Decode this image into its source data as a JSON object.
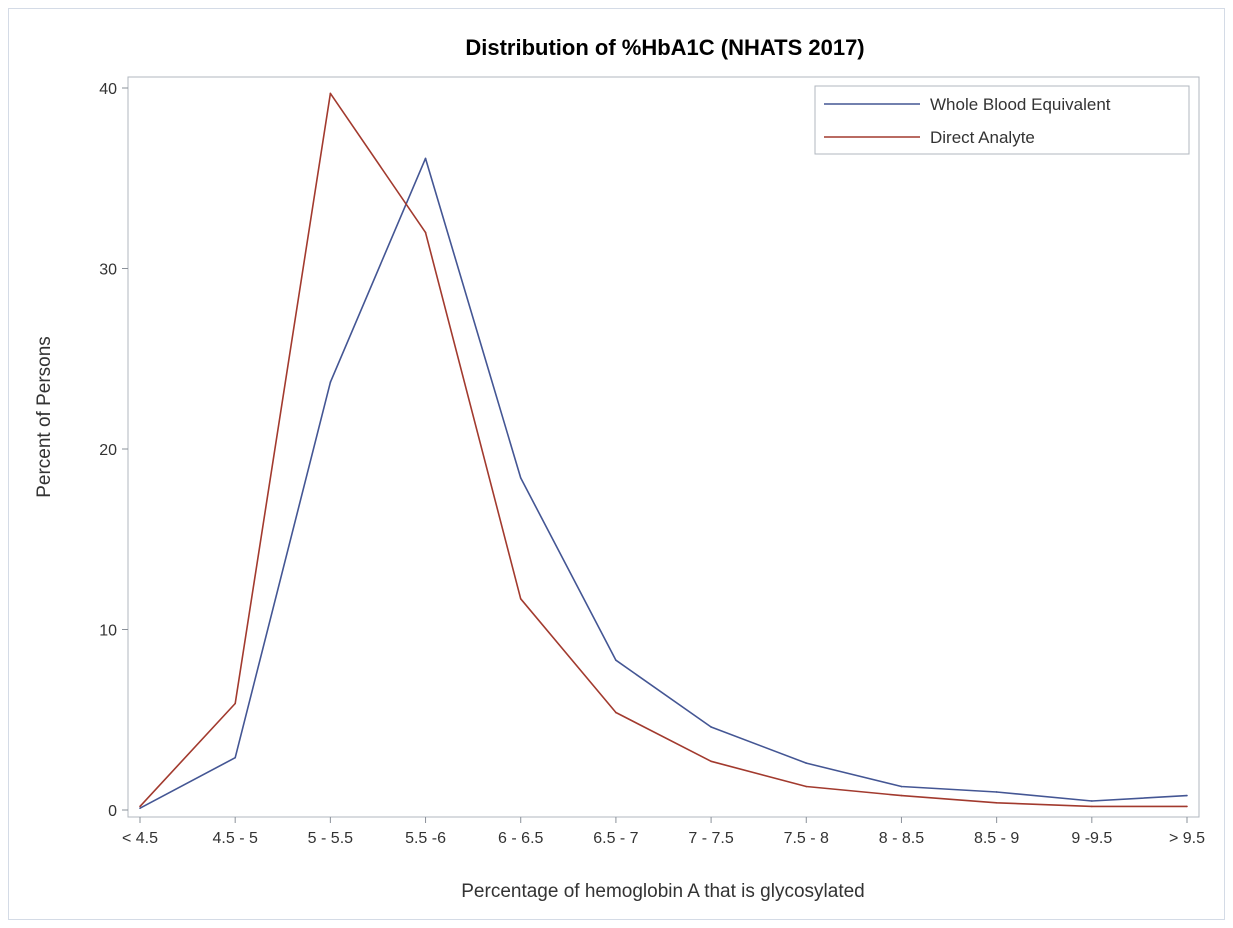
{
  "chart_data": {
    "type": "line",
    "title": "Distribution of %HbA1C (NHATS 2017)",
    "xlabel": "Percentage of hemoglobin A that is glycosylated",
    "ylabel": "Percent of Persons",
    "categories": [
      "< 4.5",
      "4.5 - 5",
      "5 - 5.5",
      "5.5 -6",
      "6 - 6.5",
      "6.5 - 7",
      "7 - 7.5",
      "7.5 - 8",
      "8 - 8.5",
      "8.5 - 9",
      "9 -9.5",
      "> 9.5"
    ],
    "yticks": [
      0,
      10,
      20,
      30,
      40
    ],
    "ylim": [
      0,
      40.5
    ],
    "grid": false,
    "legend_position": "top-right",
    "series": [
      {
        "name": "Whole Blood Equivalent",
        "color": "#445694",
        "values": [
          0.1,
          2.9,
          23.7,
          36.1,
          18.4,
          8.3,
          4.6,
          2.6,
          1.3,
          1.0,
          0.5,
          0.8
        ]
      },
      {
        "name": "Direct Analyte",
        "color": "#a23a2e",
        "values": [
          0.2,
          5.9,
          39.7,
          32.0,
          11.7,
          5.4,
          2.7,
          1.3,
          0.8,
          0.4,
          0.2,
          0.2
        ]
      }
    ]
  }
}
